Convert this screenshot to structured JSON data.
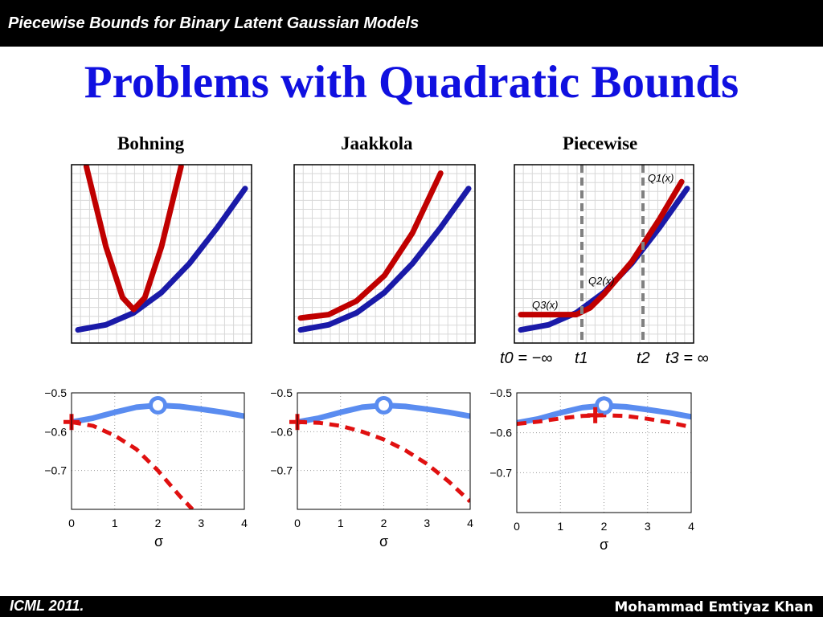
{
  "header": {
    "text": "Piecewise Bounds for Binary Latent Gaussian Models"
  },
  "slide": {
    "title": "Problems with Quadratic Bounds"
  },
  "columns": [
    {
      "title": "Bohning"
    },
    {
      "title": "Jaakkola"
    },
    {
      "title": "Piecewise"
    }
  ],
  "piece_labels": {
    "q1": "Q1(x)",
    "q2": "Q2(x)",
    "q3": "Q3(x)",
    "t0": "t0 = −∞",
    "t1": "t1",
    "t2": "t2",
    "t3": "t3 = ∞"
  },
  "footer": {
    "left": "ICML 2011.",
    "right": "Mohammad Emtiyaz Khan"
  },
  "colors": {
    "title_blue": "#1010e0",
    "bound_red": "#c00000",
    "func_blue": "#1a1aa8",
    "func_light_blue": "#5a8cf0",
    "approx_red": "#e01010",
    "threshold_gray": "#808080"
  },
  "chart_data": [
    {
      "type": "line",
      "title": "",
      "xlabel": "",
      "ylabel": "",
      "grid": true,
      "series": [
        {
          "x": [
            0,
            1,
            2,
            3,
            4,
            5,
            6
          ],
          "values": [
            0.3,
            0.6,
            1.3,
            2.5,
            4.2,
            6.3,
            8.6
          ]
        },
        {
          "x": [
            0.3,
            1,
            1.6,
            2,
            2.4,
            3,
            3.7
          ],
          "values": [
            9.9,
            5.2,
            2.2,
            1.5,
            2.2,
            5.2,
            9.9
          ]
        }
      ]
    },
    {
      "type": "line",
      "title": "",
      "xlabel": "",
      "ylabel": "",
      "grid": true,
      "series": [
        {
          "x": [
            0,
            1,
            2,
            3,
            4,
            5,
            6
          ],
          "values": [
            0.3,
            0.6,
            1.3,
            2.5,
            4.2,
            6.3,
            8.6
          ]
        },
        {
          "x": [
            0,
            1,
            2,
            3,
            4,
            5
          ],
          "values": [
            1.0,
            1.2,
            2.0,
            3.5,
            6.0,
            9.5
          ]
        }
      ]
    },
    {
      "type": "line",
      "title": "",
      "xlabel": "",
      "ylabel": "",
      "grid": true,
      "series": [
        {
          "x": [
            0,
            1,
            2,
            3,
            4,
            5,
            6
          ],
          "values": [
            0.3,
            0.6,
            1.3,
            2.5,
            4.2,
            6.3,
            8.6
          ]
        },
        {
          "x": [
            0,
            2,
            2.5,
            3,
            4,
            5,
            5.8
          ],
          "values": [
            1.2,
            1.2,
            1.6,
            2.4,
            4.3,
            6.8,
            9.0
          ]
        }
      ]
    },
    {
      "type": "line",
      "title": "",
      "xlabel": "σ",
      "ylabel": "",
      "xlim": [
        0,
        4
      ],
      "ylim": [
        -0.8,
        -0.5
      ],
      "xticks": [
        0,
        1,
        2,
        3,
        4
      ],
      "yticks": [
        -0.5,
        -0.6,
        -0.7
      ],
      "grid": true,
      "series": [
        {
          "x": [
            0,
            0.5,
            1,
            1.5,
            2,
            2.5,
            3,
            3.5,
            4
          ],
          "values": [
            -0.575,
            -0.565,
            -0.55,
            -0.537,
            -0.532,
            -0.535,
            -0.542,
            -0.55,
            -0.56
          ]
        },
        {
          "x": [
            0,
            0.5,
            1,
            1.5,
            2,
            2.5,
            2.8
          ],
          "values": [
            -0.575,
            -0.585,
            -0.61,
            -0.645,
            -0.7,
            -0.765,
            -0.8
          ]
        }
      ],
      "markers": [
        {
          "shape": "circle",
          "x": 2,
          "y": -0.532
        },
        {
          "shape": "plus",
          "x": 0,
          "y": -0.575
        }
      ]
    },
    {
      "type": "line",
      "title": "",
      "xlabel": "σ",
      "ylabel": "",
      "xlim": [
        0,
        4
      ],
      "ylim": [
        -0.8,
        -0.5
      ],
      "xticks": [
        0,
        1,
        2,
        3,
        4
      ],
      "yticks": [
        -0.5,
        -0.6,
        -0.7
      ],
      "grid": true,
      "series": [
        {
          "x": [
            0,
            0.5,
            1,
            1.5,
            2,
            2.5,
            3,
            3.5,
            4
          ],
          "values": [
            -0.575,
            -0.565,
            -0.55,
            -0.537,
            -0.532,
            -0.535,
            -0.542,
            -0.55,
            -0.56
          ]
        },
        {
          "x": [
            0,
            0.5,
            1,
            1.5,
            2,
            2.5,
            3,
            3.5,
            4
          ],
          "values": [
            -0.575,
            -0.577,
            -0.585,
            -0.6,
            -0.62,
            -0.648,
            -0.683,
            -0.728,
            -0.78
          ]
        }
      ],
      "markers": [
        {
          "shape": "circle",
          "x": 2,
          "y": -0.532
        },
        {
          "shape": "plus",
          "x": 0,
          "y": -0.575
        }
      ]
    },
    {
      "type": "line",
      "title": "",
      "xlabel": "σ",
      "ylabel": "",
      "xlim": [
        0,
        4
      ],
      "ylim": [
        -0.8,
        -0.5
      ],
      "xticks": [
        0,
        1,
        2,
        3,
        4
      ],
      "yticks": [
        -0.5,
        -0.6,
        -0.7
      ],
      "grid": true,
      "series": [
        {
          "x": [
            0,
            0.5,
            1,
            1.5,
            2,
            2.5,
            3,
            3.5,
            4
          ],
          "values": [
            -0.575,
            -0.565,
            -0.55,
            -0.537,
            -0.532,
            -0.535,
            -0.542,
            -0.55,
            -0.56
          ]
        },
        {
          "x": [
            0,
            0.5,
            1,
            1.5,
            2,
            2.5,
            3,
            3.5,
            4
          ],
          "values": [
            -0.578,
            -0.572,
            -0.564,
            -0.558,
            -0.556,
            -0.558,
            -0.565,
            -0.574,
            -0.586
          ]
        }
      ],
      "markers": [
        {
          "shape": "circle",
          "x": 2,
          "y": -0.532
        },
        {
          "shape": "plus",
          "x": 1.8,
          "y": -0.556
        }
      ]
    }
  ]
}
